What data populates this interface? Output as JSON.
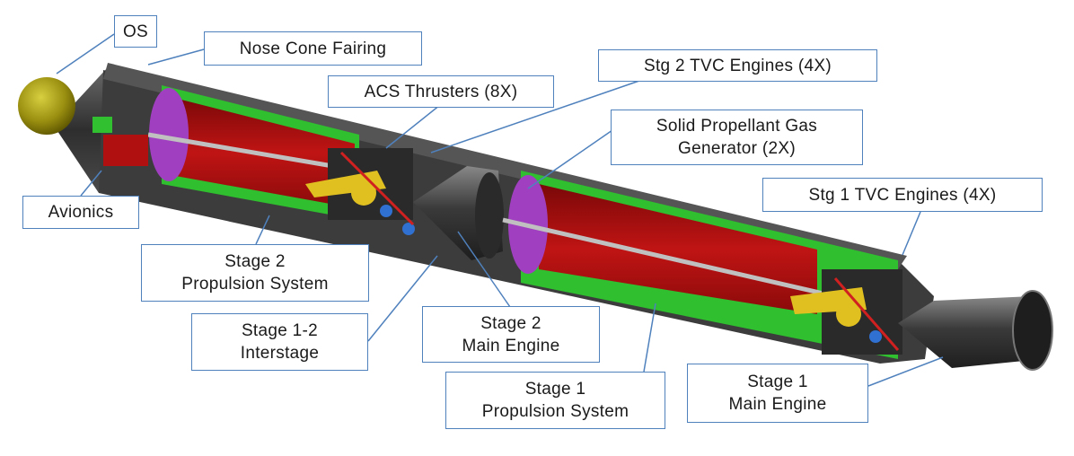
{
  "labels": {
    "os": "OS",
    "nose_cone": "Nose Cone Fairing",
    "stg2_tvc": "Stg 2 TVC Engines (4X)",
    "acs": "ACS Thrusters (8X)",
    "gas_gen_1": "Solid Propellant  Gas",
    "gas_gen_2": "Generator (2X)",
    "stg1_tvc": "Stg 1 TVC Engines (4X)",
    "avionics": "Avionics",
    "stage2_prop_1": "Stage 2",
    "stage2_prop_2": "Propulsion System",
    "interstage_1": "Stage 1-2",
    "interstage_2": "Interstage",
    "stage2_engine_1": "Stage 2",
    "stage2_engine_2": "Main Engine",
    "stage1_prop_1": "Stage 1",
    "stage1_prop_2": "Propulsion System",
    "stage1_engine_1": "Stage 1",
    "stage1_engine_2": "Main Engine"
  },
  "colors": {
    "callout_border": "#4f81bd",
    "leader": "#4f81bd",
    "hull": "#3a3a3a",
    "propellant_tank": "#b01010",
    "tank_wall": "#2fbf2f",
    "bulkhead": "#a040c0",
    "gimbal": "#e0c020",
    "os_sphere": "#9a8f10",
    "nozzle": "#4a4a4a"
  },
  "icons": [
    "rocket-cutaway-illustration"
  ]
}
